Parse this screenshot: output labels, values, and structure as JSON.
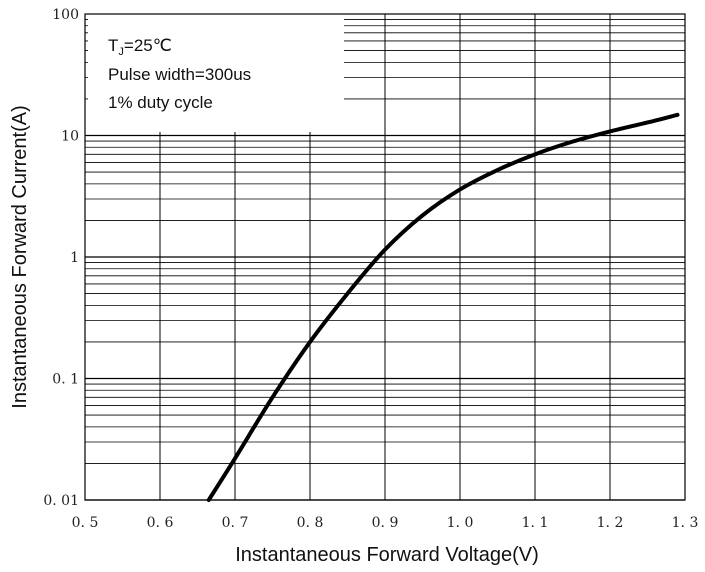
{
  "chart_data": {
    "type": "line",
    "xlabel": "Instantaneous Forward Voltage(V)",
    "ylabel": "Instantaneous Forward Current(A)",
    "xlim": [
      0.5,
      1.3
    ],
    "ylim": [
      0.01,
      100
    ],
    "yscale": "log",
    "grid": true,
    "x_ticks": [
      "0.5",
      "0.6",
      "0.7",
      "0.8",
      "0.9",
      "1.0",
      "1.1",
      "1.2",
      "1.3"
    ],
    "y_ticks": [
      "0.01",
      "0.1",
      "1",
      "10",
      "100"
    ],
    "annotation": {
      "line1_main": "T",
      "line1_sub": "J",
      "line1_rest": "=25℃",
      "line2": "Pulse width=300us",
      "line3": "1% duty cycle"
    },
    "legend_position": "top-left",
    "series": [
      {
        "color": "#000000",
        "x": [
          0.665,
          0.7,
          0.75,
          0.8,
          0.85,
          0.9,
          0.95,
          1.0,
          1.05,
          1.1,
          1.15,
          1.2,
          1.25,
          1.29
        ],
        "y": [
          0.01,
          0.022,
          0.07,
          0.2,
          0.5,
          1.15,
          2.2,
          3.6,
          5.2,
          7.0,
          8.9,
          10.8,
          12.8,
          14.8
        ]
      }
    ]
  }
}
